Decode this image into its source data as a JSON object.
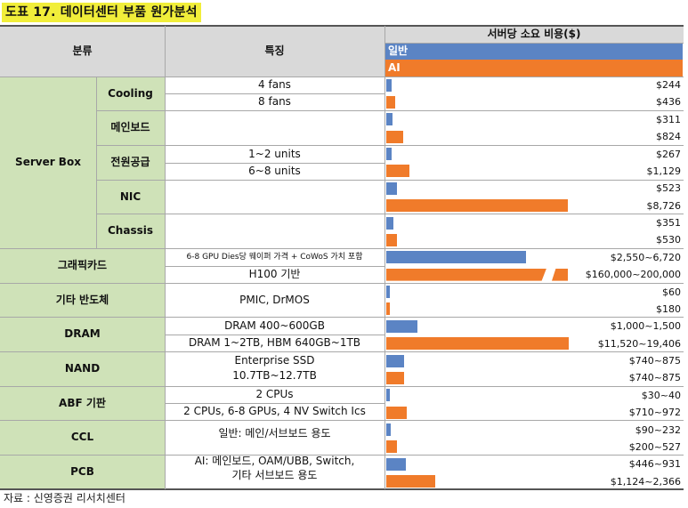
{
  "title": "도표 17. 데이터센터 부품 원가분석",
  "headers": {
    "category": "분류",
    "feature": "특징",
    "cost": "서버당 소요 비용($)"
  },
  "legend": {
    "general": "일반",
    "ai": "AI",
    "general_color": "#5b84c4",
    "ai_color": "#f07b2a"
  },
  "groups": [
    {
      "name": "Server Box"
    },
    {
      "name": "그래픽카드"
    },
    {
      "name": "기타 반도체"
    },
    {
      "name": "DRAM"
    },
    {
      "name": "NAND"
    },
    {
      "name": "ABF 기판"
    },
    {
      "name": "CCL"
    },
    {
      "name": "PCB"
    }
  ],
  "subgroups": [
    "Cooling",
    "메인보드",
    "전원공급",
    "NIC",
    "Chassis"
  ],
  "features": {
    "cooling_general": "4 fans",
    "cooling_ai": "8 fans",
    "power_general": "1~2 units",
    "power_ai": "6~8 units",
    "gpu_general": "6-8 GPU Dies당 웨이퍼 가격 + CoWoS 가치 포함",
    "gpu_ai": "H100 기반",
    "semi": "PMIC, DrMOS",
    "dram_general": "DRAM 400~600GB",
    "dram_ai": "DRAM 1~2TB, HBM 640GB~1TB",
    "nand_line1": "Enterprise SSD",
    "nand_line2": "10.7TB~12.7TB",
    "abf_general": "2 CPUs",
    "abf_ai": "2 CPUs, 6-8 GPUs, 4 NV Switch Ics",
    "ccl": "일반: 메인/서브보드 용도",
    "pcb_line1": "AI: 메인보드, OAM/UBB, Switch,",
    "pcb_line2": "기타 서브보드 용도"
  },
  "values": [
    {
      "label": "$244",
      "value": 244,
      "series": "general"
    },
    {
      "label": "$436",
      "value": 436,
      "series": "ai"
    },
    {
      "label": "$311",
      "value": 311,
      "series": "general"
    },
    {
      "label": "$824",
      "value": 824,
      "series": "ai"
    },
    {
      "label": "$267",
      "value": 267,
      "series": "general"
    },
    {
      "label": "$1,129",
      "value": 1129,
      "series": "ai"
    },
    {
      "label": "$523",
      "value": 523,
      "series": "general"
    },
    {
      "label": "$8,726",
      "value": 8726,
      "series": "ai"
    },
    {
      "label": "$351",
      "value": 351,
      "series": "general"
    },
    {
      "label": "$530",
      "value": 530,
      "series": "ai"
    },
    {
      "label": "$2,550~6,720",
      "value": 6720,
      "series": "general"
    },
    {
      "label": "$160,000~200,000",
      "value": 200000,
      "series": "ai",
      "broken_axis": true
    },
    {
      "label": "$60",
      "value": 60,
      "series": "general"
    },
    {
      "label": "$180",
      "value": 180,
      "series": "ai"
    },
    {
      "label": "$1,000~1,500",
      "value": 1500,
      "series": "general"
    },
    {
      "label": "$11,520~19,406",
      "value": 19406,
      "series": "ai"
    },
    {
      "label": "$740~875",
      "value": 875,
      "series": "general"
    },
    {
      "label": "$740~875",
      "value": 875,
      "series": "ai"
    },
    {
      "label": "$30~40",
      "value": 40,
      "series": "general"
    },
    {
      "label": "$710~972",
      "value": 972,
      "series": "ai"
    },
    {
      "label": "$90~232",
      "value": 232,
      "series": "general"
    },
    {
      "label": "$200~527",
      "value": 527,
      "series": "ai"
    },
    {
      "label": "$446~931",
      "value": 931,
      "series": "general"
    },
    {
      "label": "$1,124~2,366",
      "value": 2366,
      "series": "ai"
    }
  ],
  "source": "자료 : 신영증권 리서치센터"
}
